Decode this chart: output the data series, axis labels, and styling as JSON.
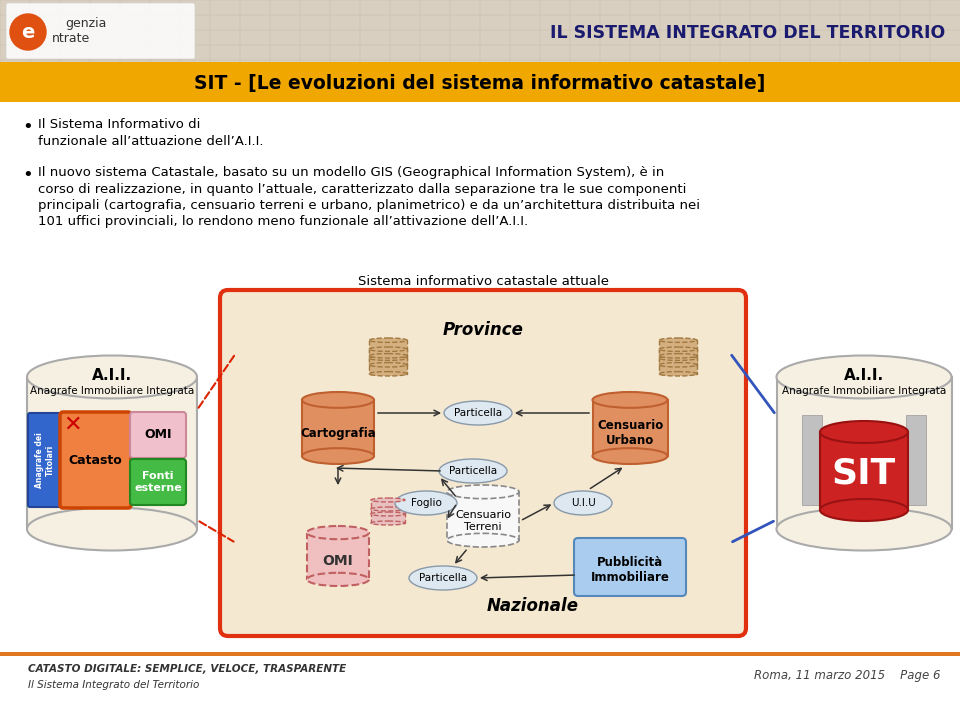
{
  "bg_color": "#ffffff",
  "header_stripe_color": "#f0a800",
  "header_text": "SIT - [Le evoluzioni del sistema informativo catastale]",
  "header_text_color": "#000000",
  "top_bar_bg": "#d8cfc0",
  "title_right": "IL SISTEMA INTEGRATO DEL TERRITORIO",
  "title_right_color": "#1a1a6e",
  "orange_line_color": "#e07820",
  "diagram_title": "Sistema informativo catastale attuale",
  "diagram_bg": "#f5e8d0",
  "diagram_border": "#e03010",
  "province_text": "Province",
  "nazionale_text": "Nazionale",
  "aii_left_title": "A.I.I.",
  "aii_left_subtitle": "Anagrafe Immobiliare Integrata",
  "aii_right_title": "A.I.I.",
  "aii_right_subtitle": "Anagrafe Immobiliare Integrata",
  "sit_text": "SIT",
  "catasto_text": "Catasto",
  "omi_text_left": "OMI",
  "fonti_text": "Fonti\nesterne",
  "cartografia_text": "Cartografia",
  "censuario_urbano_text": "Censuario\nUrbano",
  "omi_text_center": "OMI",
  "censuario_terreni_text": "Censuario\nTerreni",
  "particella_text1": "Particella",
  "particella_text2": "Particella",
  "particella_text3": "Particella",
  "foglio_text": "Foglio",
  "uiu_text": "U.I.U",
  "pubblicita_text": "Pubblicità\nImmobiliare",
  "anagrafe_titolari_text": "Titolari",
  "footer_left1": "CATASTO DIGITALE: SEMPLICE, VELOCE, TRASPARENTE",
  "footer_left2": "Il Sistema Integrato del Territorio",
  "footer_right": "Roma, 11 marzo 2015    Page 6"
}
